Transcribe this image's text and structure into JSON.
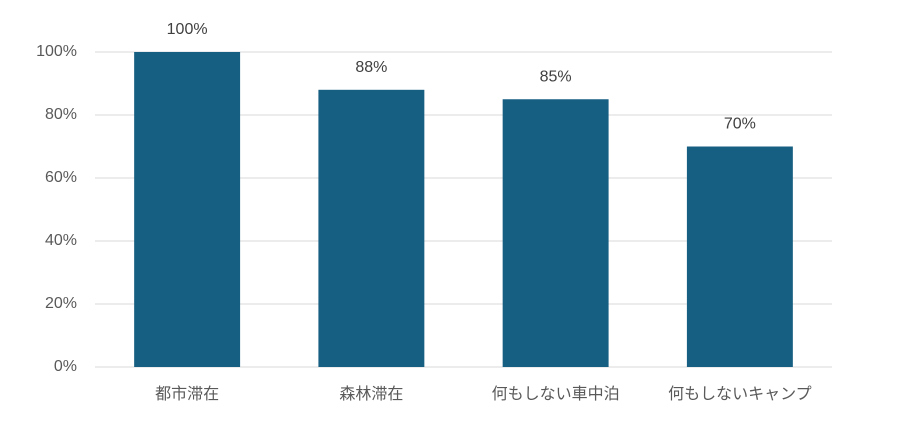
{
  "chart_data": {
    "type": "bar",
    "categories": [
      "都市滞在",
      "森林滞在",
      "何もしない車中泊",
      "何もしないキャンプ"
    ],
    "values": [
      100,
      88,
      85,
      70
    ],
    "value_labels": [
      "100%",
      "88%",
      "85%",
      "70%"
    ],
    "color": "#175f82",
    "ylim": [
      0,
      100
    ],
    "yticks": [
      {
        "value": 0,
        "label": "0%"
      },
      {
        "value": 20,
        "label": "20%"
      },
      {
        "value": 40,
        "label": "40%"
      },
      {
        "value": 60,
        "label": "60%"
      },
      {
        "value": 80,
        "label": "80%"
      },
      {
        "value": 100,
        "label": "100%"
      }
    ],
    "grid": true
  }
}
